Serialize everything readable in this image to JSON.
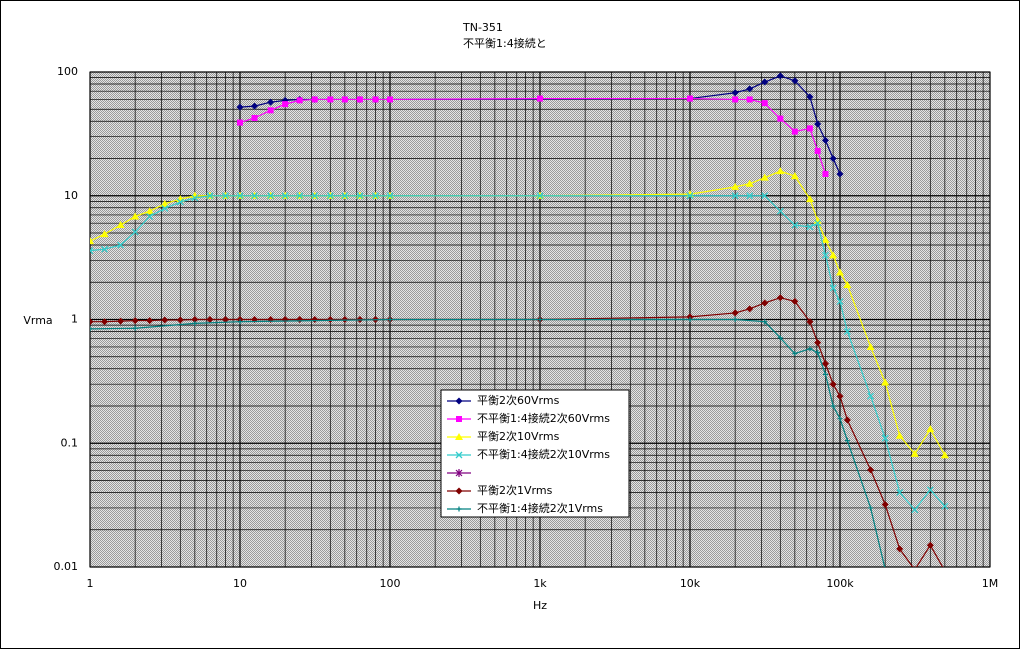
{
  "chart_data": {
    "type": "line",
    "title": "TN-351",
    "subtitle": "不平衡1:4接続と",
    "x_label": "Hz",
    "y_label": "Vrma",
    "x_scale": "log",
    "y_scale": "log",
    "grid": true,
    "minor_grid": true,
    "xlim": [
      1,
      1000000
    ],
    "xticks": [
      1,
      10,
      100,
      {
        "value": 1000,
        "label": "1k"
      },
      {
        "value": 10000,
        "label": "10k"
      },
      {
        "value": 100000,
        "label": "100k"
      },
      {
        "value": 1000000,
        "label": "1M"
      }
    ],
    "ylim": [
      0.01,
      100
    ],
    "yticks": [
      0.01,
      0.1,
      1,
      10,
      100
    ],
    "series": [
      {
        "name": "平衡2次60Vrms",
        "color": "#000080",
        "marker": "diamond",
        "x": [
          10,
          12.5,
          16,
          20,
          25,
          31.5,
          40,
          50,
          63,
          80,
          100,
          10000,
          20000,
          25000,
          31500,
          40000,
          50000,
          63000,
          71000,
          80000,
          90000,
          100000
        ],
        "values": [
          52,
          53,
          57,
          59,
          60,
          60,
          60,
          60,
          60,
          60,
          60,
          61,
          68,
          73,
          83,
          93,
          85,
          63,
          38,
          28,
          20,
          15
        ]
      },
      {
        "name": "不平衡1:4接続2次60Vrms",
        "color": "#ff00ff",
        "marker": "square",
        "x": [
          10,
          12.5,
          16,
          20,
          25,
          31.5,
          40,
          50,
          63,
          80,
          100,
          1000,
          10000,
          20000,
          25000,
          31500,
          40000,
          50000,
          63000,
          71000,
          80000
        ],
        "values": [
          39,
          42.5,
          49,
          55,
          59,
          60,
          60,
          60,
          60,
          60,
          60,
          61,
          61,
          60,
          60,
          56,
          42,
          33,
          35,
          23,
          15
        ]
      },
      {
        "name": "平衡2次10Vrms",
        "color": "#ffff00",
        "marker": "triangle",
        "x": [
          1,
          1.25,
          1.6,
          2,
          2.5,
          3.15,
          4,
          5,
          6.3,
          8,
          10,
          12.5,
          16,
          20,
          25,
          31.5,
          40,
          50,
          63,
          80,
          100,
          1000,
          10000,
          20000,
          25000,
          31500,
          40000,
          50000,
          63000,
          71000,
          80000,
          90000,
          100000,
          112000,
          160000,
          200000,
          250000,
          315000,
          400000,
          500000
        ],
        "values": [
          4.3,
          4.9,
          5.8,
          6.8,
          7.5,
          8.6,
          9.4,
          10,
          10,
          10,
          10,
          10,
          10,
          10,
          10,
          10,
          10,
          10,
          10,
          10,
          10,
          10,
          10.3,
          11.8,
          12.5,
          14,
          15.8,
          14.4,
          9.4,
          6.3,
          4.4,
          3.3,
          2.4,
          1.9,
          0.6,
          0.31,
          0.115,
          0.082,
          0.13,
          0.08
        ]
      },
      {
        "name": "不平衡1:4接続2次10Vrms",
        "color": "#33cccc",
        "marker": "x",
        "x": [
          1,
          1.25,
          1.6,
          2,
          2.5,
          3.15,
          4,
          5,
          6.3,
          8,
          10,
          12.5,
          16,
          20,
          25,
          31.5,
          40,
          50,
          63,
          80,
          100,
          1000,
          10000,
          20000,
          25000,
          31500,
          40000,
          50000,
          63000,
          71000,
          80000,
          90000,
          100000,
          112000,
          160000,
          200000,
          250000,
          315000,
          400000,
          500000
        ],
        "values": [
          3.6,
          3.7,
          4.0,
          5.1,
          6.8,
          7.9,
          8.9,
          9.6,
          10,
          10,
          10,
          10,
          10,
          10,
          10,
          10,
          10,
          10,
          10,
          10,
          10,
          10,
          10,
          10,
          10,
          10,
          7.5,
          5.8,
          5.6,
          6.0,
          3.3,
          1.8,
          1.4,
          0.8,
          0.24,
          0.11,
          0.04,
          0.029,
          0.042,
          0.031
        ]
      },
      {
        "color": "#800080",
        "marker": "star",
        "x": [],
        "values": []
      },
      {
        "name": "平衡2次1Vrms",
        "color": "#800000",
        "marker": "diamond",
        "x": [
          1,
          1.25,
          1.6,
          2,
          2.5,
          3.15,
          4,
          5,
          6.3,
          8,
          10,
          12.5,
          16,
          20,
          25,
          31.5,
          40,
          50,
          63,
          80,
          100,
          1000,
          10000,
          20000,
          25000,
          31500,
          40000,
          50000,
          63000,
          71000,
          80000,
          90000,
          100000,
          112000,
          160000,
          200000,
          250000,
          315000,
          400000,
          500000
        ],
        "values": [
          0.96,
          0.96,
          0.97,
          0.98,
          0.98,
          0.99,
          0.99,
          1,
          1,
          1,
          1,
          1,
          1,
          1,
          1,
          1,
          1,
          1,
          1,
          1,
          1,
          1,
          1.05,
          1.13,
          1.22,
          1.36,
          1.5,
          1.4,
          0.96,
          0.65,
          0.44,
          0.3,
          0.24,
          0.154,
          0.061,
          0.032,
          0.014,
          0.0095,
          0.015,
          0.0093
        ]
      },
      {
        "name": "不平衡1:4接続2次1Vrms",
        "color": "#008080",
        "marker": "plus",
        "x": [
          1,
          2,
          5,
          10,
          100,
          1000,
          10000,
          20000,
          31500,
          40000,
          50000,
          63000,
          71000,
          80000,
          90000,
          100000,
          112000,
          160000,
          200000
        ],
        "values": [
          0.84,
          0.85,
          0.93,
          0.96,
          1,
          1,
          1,
          1,
          0.96,
          0.71,
          0.53,
          0.58,
          0.54,
          0.36,
          0.2,
          0.158,
          0.105,
          0.03,
          0.0096
        ]
      }
    ]
  }
}
